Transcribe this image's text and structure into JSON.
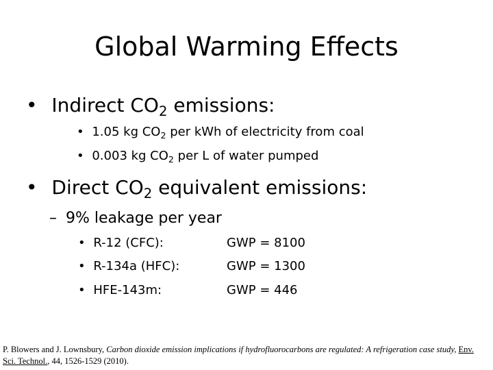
{
  "title": "Global Warming Effects",
  "bullet_char": "•",
  "dash_char": "–",
  "indirect": {
    "heading_pre": "Indirect CO",
    "heading_sub": "2",
    "heading_post": " emissions:",
    "items": [
      {
        "pre": "1.05 kg CO",
        "sub": "2",
        "post": " per kWh of electricity from coal"
      },
      {
        "pre": "0.003 kg CO",
        "sub": "2",
        "post": " per L of water pumped"
      }
    ]
  },
  "direct": {
    "heading_pre": "Direct CO",
    "heading_sub": "2",
    "heading_post": " equivalent emissions:",
    "subheading": "9% leakage per year",
    "refrigerants": [
      {
        "name": "R-12 (CFC):",
        "gwp": "GWP = 8100"
      },
      {
        "name": "R-134a (HFC):",
        "gwp": "GWP = 1300"
      },
      {
        "name": "HFE-143m:",
        "gwp": "GWP = 446"
      }
    ]
  },
  "citation": {
    "authors": "P. Blowers and J. Lownsbury, ",
    "title": "Carbon dioxide emission implications if hydrofluorocarbons are regulated: A refrigeration case study",
    "sep": ", ",
    "journal": "Env. Sci. Technol.",
    "details": ", 44, 1526-1529 (2010)."
  }
}
